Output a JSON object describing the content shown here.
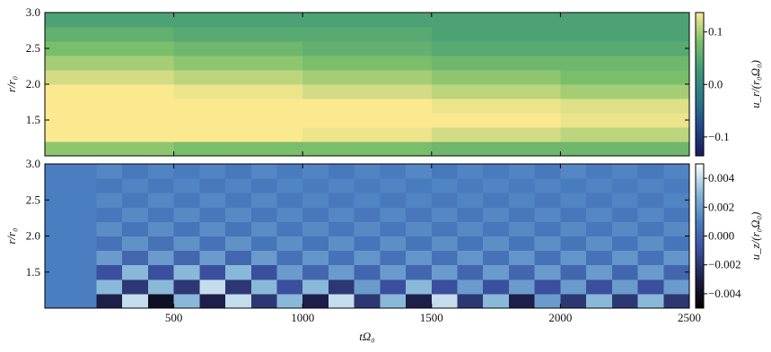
{
  "chart_data": [
    {
      "type": "heatmap",
      "ylabel": "r/r₀",
      "x": [
        250,
        750,
        1250,
        1750,
        2250
      ],
      "y": [
        1.1,
        1.3,
        1.5,
        1.7,
        1.9,
        2.1,
        2.3,
        2.5,
        2.7,
        2.9
      ],
      "z": [
        [
          0.09,
          0.08,
          0.08,
          0.07,
          0.07
        ],
        [
          0.137,
          0.137,
          0.13,
          0.12,
          0.11
        ],
        [
          0.137,
          0.137,
          0.137,
          0.137,
          0.13
        ],
        [
          0.137,
          0.137,
          0.137,
          0.13,
          0.125
        ],
        [
          0.137,
          0.13,
          0.12,
          0.11,
          0.1
        ],
        [
          0.12,
          0.11,
          0.1,
          0.09,
          0.08
        ],
        [
          0.1,
          0.09,
          0.08,
          0.07,
          0.07
        ],
        [
          0.08,
          0.07,
          0.06,
          0.05,
          0.05
        ],
        [
          0.06,
          0.05,
          0.05,
          0.04,
          0.04
        ],
        [
          0.04,
          0.04,
          0.04,
          0.04,
          0.04
        ]
      ],
      "xlim": [
        0,
        2500
      ],
      "ylim": [
        1.0,
        3.0
      ],
      "xticks": [
        500,
        1000,
        1500,
        2000,
        2500
      ],
      "yticks": [
        1.5,
        {
          "value": 2,
          "label": "2.0"
        },
        2.5,
        {
          "value": 3,
          "label": "3.0"
        }
      ],
      "colorbar": {
        "label": "u_r/(r₀Ω₀)",
        "clim": [
          -0.136,
          0.137
        ],
        "ticks": [
          {
            "value": -0.1,
            "label": "−0.1"
          },
          {
            "value": 0,
            "label": "0.0"
          },
          0.1
        ],
        "colors": [
          "#1b1a5a",
          "#1f4a8a",
          "#2a7a8c",
          "#3f9a78",
          "#7cc06a",
          "#fbe990"
        ]
      }
    },
    {
      "type": "heatmap",
      "xlabel": "tΩ₀",
      "ylabel": "r/r₀",
      "x": [
        50,
        150,
        250,
        350,
        450,
        550,
        650,
        750,
        850,
        950,
        1050,
        1150,
        1250,
        1350,
        1450,
        1550,
        1650,
        1750,
        1850,
        1950,
        2050,
        2150,
        2250,
        2350,
        2450
      ],
      "y": [
        1.1,
        1.3,
        1.5,
        1.7,
        1.9,
        2.1,
        2.3,
        2.5,
        2.7,
        2.9
      ],
      "z": [
        [
          0.001,
          0.001,
          -0.003,
          0.004,
          -0.004,
          0.003,
          -0.003,
          0.004,
          -0.002,
          0.003,
          -0.003,
          0.004,
          -0.002,
          0.003,
          -0.003,
          0.004,
          -0.002,
          0.003,
          -0.003,
          0.002,
          -0.002,
          0.003,
          -0.002,
          0.003,
          -0.002
        ],
        [
          0.001,
          0.001,
          0.003,
          -0.002,
          0.003,
          -0.002,
          0.004,
          -0.002,
          0.003,
          -0.001,
          0.003,
          -0.002,
          0.002,
          -0.001,
          0.003,
          -0.001,
          0.002,
          -0.001,
          0.002,
          -0.001,
          0.002,
          -0.001,
          0.002,
          -0.001,
          0.002
        ],
        [
          0.001,
          0.001,
          -0.001,
          0.003,
          -0.001,
          0.003,
          -0.001,
          0.003,
          -0.001,
          0.002,
          0,
          0.002,
          0,
          0.002,
          0,
          0.002,
          0,
          0.002,
          0,
          0.002,
          0,
          0.002,
          0,
          0.002,
          0
        ],
        [
          0.001,
          0.001,
          0.002,
          0,
          0.002,
          0,
          0.002,
          0,
          0.002,
          0.0005,
          0.0018,
          0.0005,
          0.0018,
          0.0005,
          0.0018,
          0.0005,
          0.0018,
          0.0005,
          0.0018,
          0.0005,
          0.0018,
          0.0005,
          0.0018,
          0.0005,
          0.0018
        ],
        [
          0.001,
          0.001,
          0.0005,
          0.0017,
          0.0005,
          0.0017,
          0.0005,
          0.0017,
          0.0006,
          0.0016,
          0.0006,
          0.0016,
          0.0006,
          0.0016,
          0.0006,
          0.0016,
          0.0006,
          0.0016,
          0.0006,
          0.0016,
          0.0006,
          0.0016,
          0.0006,
          0.0016,
          0.0006
        ],
        [
          0.001,
          0.001,
          0.0015,
          0.0006,
          0.0015,
          0.0006,
          0.0015,
          0.0006,
          0.0015,
          0.0007,
          0.0014,
          0.0007,
          0.0014,
          0.0007,
          0.0014,
          0.0007,
          0.0014,
          0.0007,
          0.0014,
          0.0007,
          0.0014,
          0.0007,
          0.0014,
          0.0007,
          0.0014
        ],
        [
          0.001,
          0.001,
          0.0007,
          0.0014,
          0.0007,
          0.0014,
          0.0007,
          0.0014,
          0.0007,
          0.0013,
          0.0007,
          0.0013,
          0.0007,
          0.0013,
          0.0007,
          0.0013,
          0.0007,
          0.0013,
          0.0007,
          0.0013,
          0.0007,
          0.0013,
          0.0007,
          0.0013,
          0.0007
        ],
        [
          0.001,
          0.001,
          0.0013,
          0.0008,
          0.0013,
          0.0008,
          0.0013,
          0.0008,
          0.0013,
          0.0008,
          0.0012,
          0.0008,
          0.0012,
          0.0008,
          0.0012,
          0.0008,
          0.0012,
          0.0008,
          0.0012,
          0.0008,
          0.0012,
          0.0008,
          0.0012,
          0.0008,
          0.0012
        ],
        [
          0.001,
          0.001,
          0.0008,
          0.0012,
          0.0008,
          0.0012,
          0.0008,
          0.0012,
          0.0008,
          0.0012,
          0.0009,
          0.0012,
          0.0009,
          0.0012,
          0.0009,
          0.0012,
          0.0009,
          0.0012,
          0.0009,
          0.0012,
          0.0009,
          0.0012,
          0.0009,
          0.0012,
          0.0009
        ],
        [
          0.001,
          0.001,
          0.0013,
          0.0008,
          0.0012,
          0.0009,
          0.0012,
          0.0008,
          0.0013,
          0.0009,
          0.0012,
          0.0008,
          0.0012,
          0.0009,
          0.0013,
          0.0008,
          0.0012,
          0.0009,
          0.0012,
          0.0008,
          0.0013,
          0.0009,
          0.0012,
          0.0008,
          0.0012
        ]
      ],
      "xlim": [
        0,
        2500
      ],
      "ylim": [
        1.0,
        3.0
      ],
      "xticks": [
        500,
        1000,
        1500,
        2000,
        2500
      ],
      "yticks": [
        1.5,
        {
          "value": 2,
          "label": "2.0"
        },
        2.5,
        {
          "value": 3,
          "label": "3.0"
        }
      ],
      "colorbar": {
        "label": "u_z/(r₀Ω₀)",
        "clim": [
          -0.005,
          0.005
        ],
        "ticks": [
          {
            "value": -0.004,
            "label": "−0.004"
          },
          {
            "value": -0.002,
            "label": "−0.002"
          },
          {
            "value": 0,
            "label": "0.000"
          },
          0.002,
          0.004
        ],
        "colors": [
          "#000000",
          "#1e1e4a",
          "#3a4f9e",
          "#4a7ec0",
          "#8ab8d8",
          "#ffffff"
        ]
      }
    }
  ]
}
